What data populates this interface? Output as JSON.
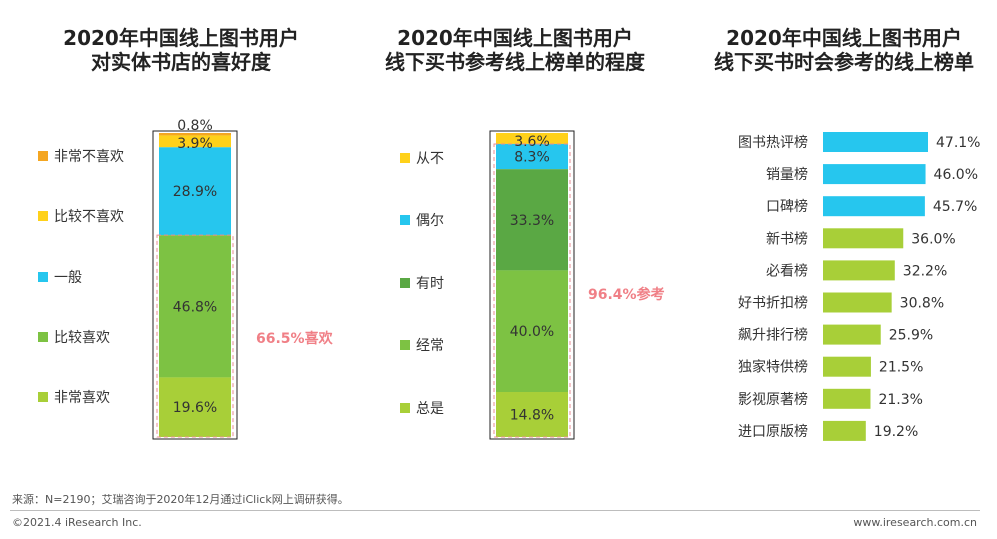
{
  "titles": {
    "chart1": [
      "2020年中国线上图书用户",
      "对实体书店的喜好度"
    ],
    "chart2": [
      "2020年中国线上图书用户",
      "线下买书参考线上榜单的程度"
    ],
    "chart3": [
      "2020年中国线上图书用户",
      "线下买书时会参考的线上榜单"
    ]
  },
  "chart_data": [
    {
      "type": "bar",
      "stacked": true,
      "title": "2020年中国线上图书用户对实体书店的喜好度",
      "categories": [
        "非常不喜欢",
        "比较不喜欢",
        "一般",
        "比较喜欢",
        "非常喜欢"
      ],
      "values": [
        0.8,
        3.9,
        28.9,
        46.8,
        19.6
      ],
      "labels": [
        "0.8%",
        "3.9%",
        "28.9%",
        "46.8%",
        "19.6%"
      ],
      "colors": [
        "#f4a621",
        "#ffd11a",
        "#26c6ee",
        "#7dc243",
        "#a8cf38"
      ],
      "annotation": "66.5%喜欢"
    },
    {
      "type": "bar",
      "stacked": true,
      "title": "2020年中国线上图书用户线下买书参考线上榜单的程度",
      "categories": [
        "从不",
        "偶尔",
        "有时",
        "经常",
        "总是"
      ],
      "values": [
        3.6,
        8.3,
        33.3,
        40.0,
        14.8
      ],
      "labels": [
        "3.6%",
        "8.3%",
        "33.3%",
        "40.0%",
        "14.8%"
      ],
      "colors": [
        "#ffd11a",
        "#26c6ee",
        "#5aa844",
        "#7dc243",
        "#a8cf38"
      ],
      "annotation": "96.4%参考"
    },
    {
      "type": "bar",
      "orientation": "horizontal",
      "title": "2020年中国线上图书用户线下买书时会参考的线上榜单",
      "categories": [
        "图书热评榜",
        "销量榜",
        "口碑榜",
        "新书榜",
        "必看榜",
        "好书折扣榜",
        "飙升排行榜",
        "独家特供榜",
        "影视原著榜",
        "进口原版榜"
      ],
      "values": [
        47.1,
        46.0,
        45.7,
        36.0,
        32.2,
        30.8,
        25.9,
        21.5,
        21.3,
        19.2
      ],
      "labels": [
        "47.1%",
        "46.0%",
        "45.7%",
        "36.0%",
        "32.2%",
        "30.8%",
        "25.9%",
        "21.5%",
        "21.3%",
        "19.2%"
      ],
      "colors": [
        "#26c6ee",
        "#26c6ee",
        "#26c6ee",
        "#a8cf38",
        "#a8cf38",
        "#a8cf38",
        "#a8cf38",
        "#a8cf38",
        "#a8cf38",
        "#a8cf38"
      ]
    }
  ],
  "footer": {
    "source": "来源：N=2190；艾瑞咨询于2020年12月通过iClick网上调研获得。",
    "copyright": "©2021.4 iResearch Inc.",
    "website": "www.iresearch.com.cn"
  },
  "colors": {
    "annotation": "#f07f86",
    "dash": "#e98d93"
  }
}
